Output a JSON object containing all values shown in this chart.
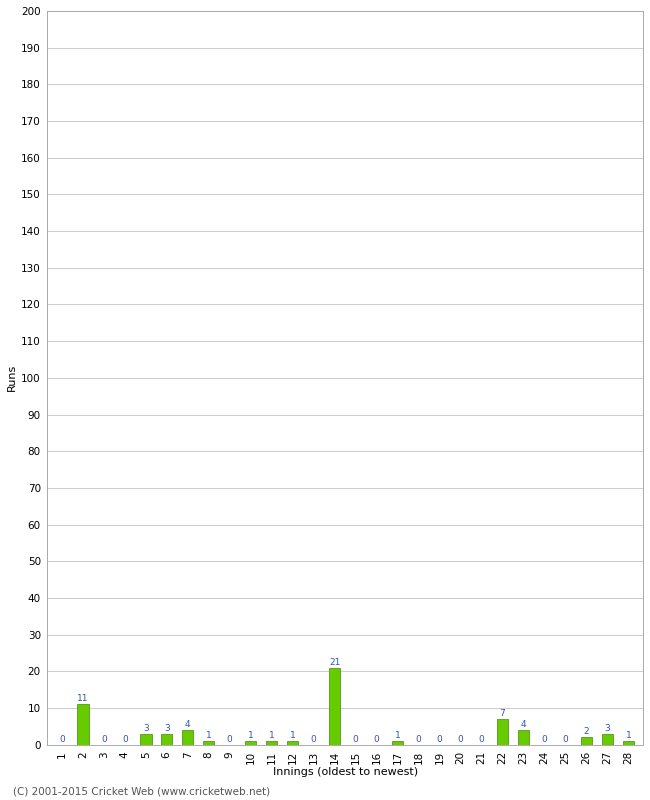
{
  "innings": [
    1,
    2,
    3,
    4,
    5,
    6,
    7,
    8,
    9,
    10,
    11,
    12,
    13,
    14,
    15,
    16,
    17,
    18,
    19,
    20,
    21,
    22,
    23,
    24,
    25,
    26,
    27,
    28
  ],
  "runs": [
    0,
    11,
    0,
    0,
    3,
    3,
    4,
    1,
    0,
    1,
    1,
    1,
    0,
    21,
    0,
    0,
    1,
    0,
    0,
    0,
    0,
    7,
    4,
    0,
    0,
    2,
    3,
    1
  ],
  "bar_color": "#66cc00",
  "bar_edge_color": "#448800",
  "ylabel": "Runs",
  "xlabel": "Innings (oldest to newest)",
  "ylim": [
    0,
    200
  ],
  "yticks": [
    0,
    10,
    20,
    30,
    40,
    50,
    60,
    70,
    80,
    90,
    100,
    110,
    120,
    130,
    140,
    150,
    160,
    170,
    180,
    190,
    200
  ],
  "background_color": "#ffffff",
  "grid_color": "#cccccc",
  "footer": "(C) 2001-2015 Cricket Web (www.cricketweb.net)",
  "label_fontsize": 8,
  "tick_fontsize": 7.5,
  "footer_fontsize": 7.5,
  "value_label_fontsize": 6.5,
  "value_label_color": "#3355aa"
}
